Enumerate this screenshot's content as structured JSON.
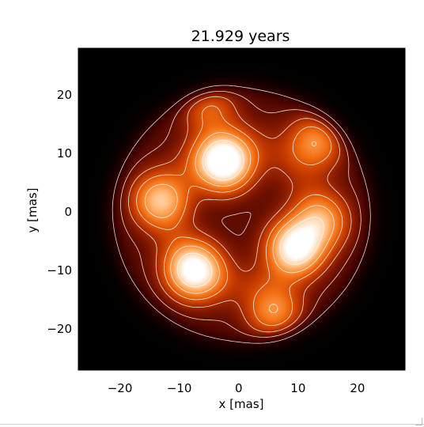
{
  "chart_data": {
    "type": "heatmap",
    "title": "21.929 years",
    "xlabel": "x [mas]",
    "ylabel": "y [mas]",
    "xlim": [
      -27,
      28
    ],
    "ylim": [
      -27,
      28
    ],
    "x_ticks": [
      -20,
      -10,
      0,
      10,
      20
    ],
    "y_ticks": [
      -20,
      -10,
      0,
      10,
      20
    ],
    "x_tick_labels": [
      "−20",
      "−10",
      "0",
      "10",
      "20"
    ],
    "y_tick_labels": [
      "−20",
      "−10",
      "0",
      "10",
      "20"
    ],
    "colormap": [
      "#000000",
      "#3a0000",
      "#7a1500",
      "#c43a00",
      "#f06a10",
      "#ffa050",
      "#ffd8b0",
      "#ffffff"
    ],
    "background_color": "#000000",
    "contour_color": "#ffffff",
    "contour_levels": [
      0.08,
      0.18,
      0.3,
      0.45,
      0.62,
      0.82
    ],
    "disk": {
      "center": [
        0.5,
        -0.5
      ],
      "radius": 21.5
    },
    "features": [
      {
        "x": -2.5,
        "y": 8.5,
        "peak": 1.0
      },
      {
        "x": -7.5,
        "y": -10.0,
        "peak": 0.85
      },
      {
        "x": 9.5,
        "y": -6.0,
        "peak": 0.8
      },
      {
        "x": -13.5,
        "y": 2.0,
        "peak": 0.55
      },
      {
        "x": 13.0,
        "y": 12.0,
        "peak": 0.45
      },
      {
        "x": 14.0,
        "y": -1.5,
        "peak": 0.45
      },
      {
        "x": 6.0,
        "y": -17.0,
        "peak": 0.45
      },
      {
        "x": -5.0,
        "y": 18.0,
        "peak": 0.32
      }
    ]
  }
}
